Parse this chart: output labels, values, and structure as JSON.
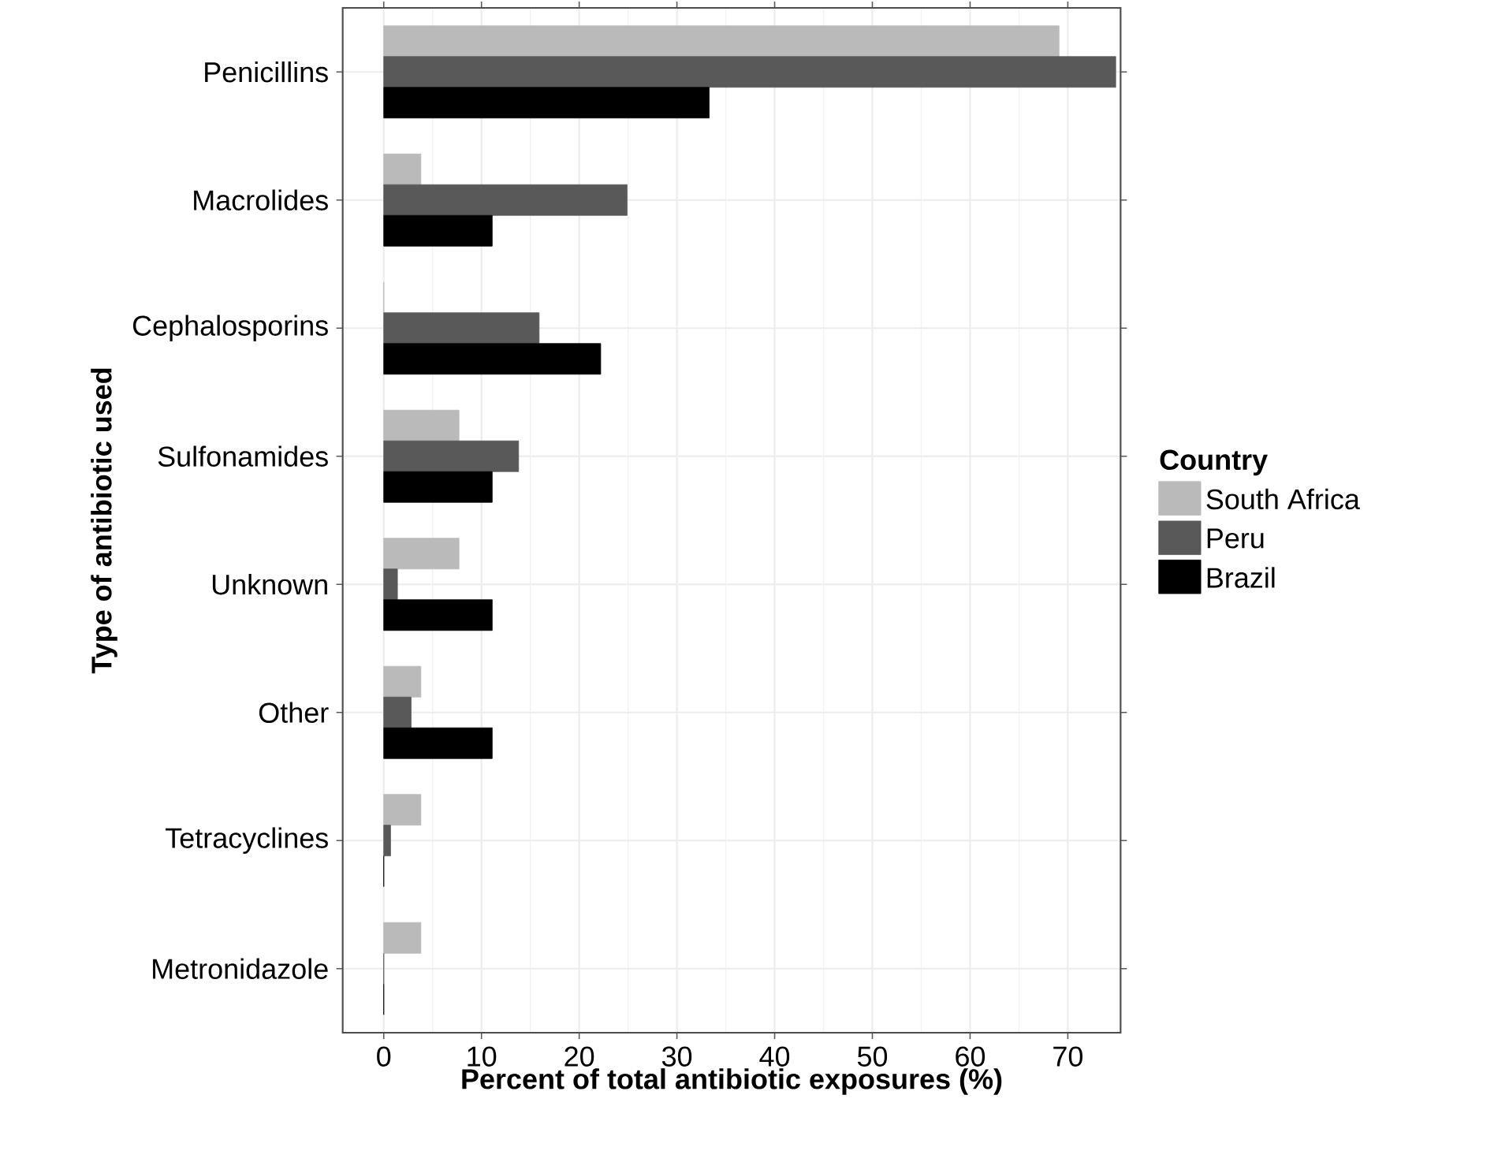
{
  "chart_data": {
    "type": "bar",
    "orientation": "horizontal",
    "xlabel": "Percent of total antibiotic exposures (%)",
    "ylabel": "Type of antibiotic used",
    "legend_title": "Country",
    "categories": [
      "Penicillins",
      "Macrolides",
      "Cephalosporins",
      "Sulfonamides",
      "Unknown",
      "Other",
      "Tetracyclines",
      "Metronidazole"
    ],
    "series": [
      {
        "name": "South Africa",
        "color": "#bababa",
        "values": [
          69.1,
          3.8,
          0,
          7.7,
          7.7,
          3.8,
          3.8,
          3.8
        ]
      },
      {
        "name": "Peru",
        "color": "#595959",
        "values": [
          74.9,
          24.9,
          15.9,
          13.8,
          1.4,
          2.8,
          0.7,
          0
        ]
      },
      {
        "name": "Brazil",
        "color": "#000000",
        "values": [
          33.3,
          11.1,
          22.2,
          11.1,
          11.1,
          11.1,
          0,
          0
        ]
      }
    ],
    "xlim": [
      -4.2,
      75.4
    ],
    "xticks": [
      0,
      10,
      20,
      30,
      40,
      50,
      60,
      70
    ],
    "grid": true,
    "legend": "right"
  }
}
